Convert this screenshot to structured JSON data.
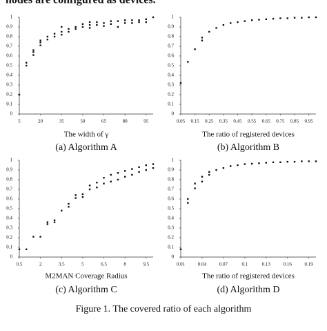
{
  "top_text": "nodes are configured as devices.",
  "figure_caption": "Figure 1.    The covered ratio of each algorithm",
  "chart_data": [
    {
      "type": "scatter",
      "caption": "(a) Algorithm A",
      "xlabel": "The width of γ",
      "x": [
        5,
        10,
        10,
        15,
        15,
        15,
        20,
        20,
        20,
        25,
        25,
        30,
        30,
        35,
        35,
        35,
        40,
        40,
        45,
        45,
        50,
        50,
        55,
        55,
        55,
        60,
        60,
        65,
        65,
        70,
        70,
        75,
        75,
        80,
        80,
        85,
        85,
        90,
        90,
        95,
        95,
        100
      ],
      "values": [
        0.2,
        0.5,
        0.53,
        0.61,
        0.64,
        0.66,
        0.71,
        0.74,
        0.76,
        0.77,
        0.8,
        0.8,
        0.83,
        0.82,
        0.85,
        0.9,
        0.85,
        0.88,
        0.88,
        0.9,
        0.9,
        0.93,
        0.89,
        0.92,
        0.95,
        0.92,
        0.95,
        0.91,
        0.94,
        0.93,
        0.96,
        0.9,
        0.96,
        0.94,
        0.97,
        0.94,
        0.97,
        0.95,
        0.97,
        0.95,
        0.98,
        1.0
      ],
      "color": "#111111",
      "xlim": [
        5,
        100
      ],
      "ylim": [
        0,
        1
      ],
      "xticks": [
        5,
        20,
        35,
        50,
        65,
        80,
        95
      ],
      "yticks": [
        0,
        0.1,
        0.2,
        0.3,
        0.4,
        0.5,
        0.6,
        0.7,
        0.8,
        0.9,
        1
      ]
    },
    {
      "type": "scatter",
      "caption": "(b) Algorithm B",
      "xlabel": "The ratio of registered devices",
      "x": [
        0.05,
        0.1,
        0.15,
        0.2,
        0.2,
        0.25,
        0.3,
        0.35,
        0.4,
        0.45,
        0.5,
        0.55,
        0.6,
        0.65,
        0.7,
        0.75,
        0.8,
        0.85,
        0.9,
        0.95,
        1.0
      ],
      "values": [
        0.32,
        0.54,
        0.67,
        0.76,
        0.79,
        0.85,
        0.89,
        0.92,
        0.94,
        0.95,
        0.96,
        0.97,
        0.975,
        0.98,
        0.985,
        0.99,
        0.99,
        0.995,
        0.995,
        1.0,
        1.0
      ],
      "color": "#111111",
      "xlim": [
        0.05,
        1.0
      ],
      "ylim": [
        0,
        1
      ],
      "xticks": [
        0.05,
        0.15,
        0.25,
        0.35,
        0.45,
        0.55,
        0.65,
        0.75,
        0.85,
        0.95
      ],
      "yticks": [
        0,
        0.1,
        0.2,
        0.3,
        0.4,
        0.5,
        0.6,
        0.7,
        0.8,
        0.9,
        1
      ]
    },
    {
      "type": "scatter",
      "caption": "(c) Algorithm C",
      "xlabel": "M2MAN Coverage Radius",
      "x": [
        0.5,
        1,
        1.5,
        2,
        2.5,
        2.5,
        3,
        3,
        3.5,
        4,
        4,
        4.5,
        4.5,
        5,
        5,
        5.5,
        5.5,
        6,
        6,
        6.5,
        6.5,
        7,
        7,
        7.5,
        7.5,
        8,
        8,
        8.5,
        8.5,
        9,
        9,
        9.5,
        9.5,
        10,
        10
      ],
      "values": [
        0.08,
        0.08,
        0.21,
        0.21,
        0.34,
        0.36,
        0.36,
        0.38,
        0.48,
        0.52,
        0.55,
        0.61,
        0.64,
        0.62,
        0.65,
        0.7,
        0.74,
        0.72,
        0.77,
        0.76,
        0.82,
        0.78,
        0.85,
        0.8,
        0.87,
        0.83,
        0.89,
        0.85,
        0.91,
        0.88,
        0.93,
        0.9,
        0.95,
        0.92,
        0.96
      ],
      "color": "#111111",
      "xlim": [
        0.5,
        10
      ],
      "ylim": [
        0,
        1
      ],
      "xticks": [
        0.5,
        2,
        3.5,
        5,
        6.5,
        8,
        9.5
      ],
      "yticks": [
        0,
        0.1,
        0.2,
        0.3,
        0.4,
        0.5,
        0.6,
        0.7,
        0.8,
        0.9,
        1
      ]
    },
    {
      "type": "scatter",
      "caption": "(d) Algorithm D",
      "xlabel": "The ratio of registered devices",
      "x": [
        0.01,
        0.02,
        0.02,
        0.03,
        0.03,
        0.04,
        0.04,
        0.05,
        0.05,
        0.06,
        0.07,
        0.08,
        0.09,
        0.1,
        0.11,
        0.12,
        0.13,
        0.14,
        0.15,
        0.16,
        0.17,
        0.18,
        0.19,
        0.2
      ],
      "values": [
        0.08,
        0.56,
        0.6,
        0.71,
        0.76,
        0.78,
        0.83,
        0.85,
        0.88,
        0.9,
        0.92,
        0.94,
        0.95,
        0.96,
        0.965,
        0.97,
        0.975,
        0.98,
        0.98,
        0.985,
        0.985,
        0.99,
        0.99,
        0.99
      ],
      "color": "#111111",
      "xlim": [
        0.01,
        0.2
      ],
      "ylim": [
        0,
        1
      ],
      "xticks": [
        0.01,
        0.04,
        0.07,
        0.1,
        0.13,
        0.16,
        0.19
      ],
      "yticks": [
        0,
        0.1,
        0.2,
        0.3,
        0.4,
        0.5,
        0.6,
        0.7,
        0.8,
        0.9,
        1
      ]
    }
  ]
}
